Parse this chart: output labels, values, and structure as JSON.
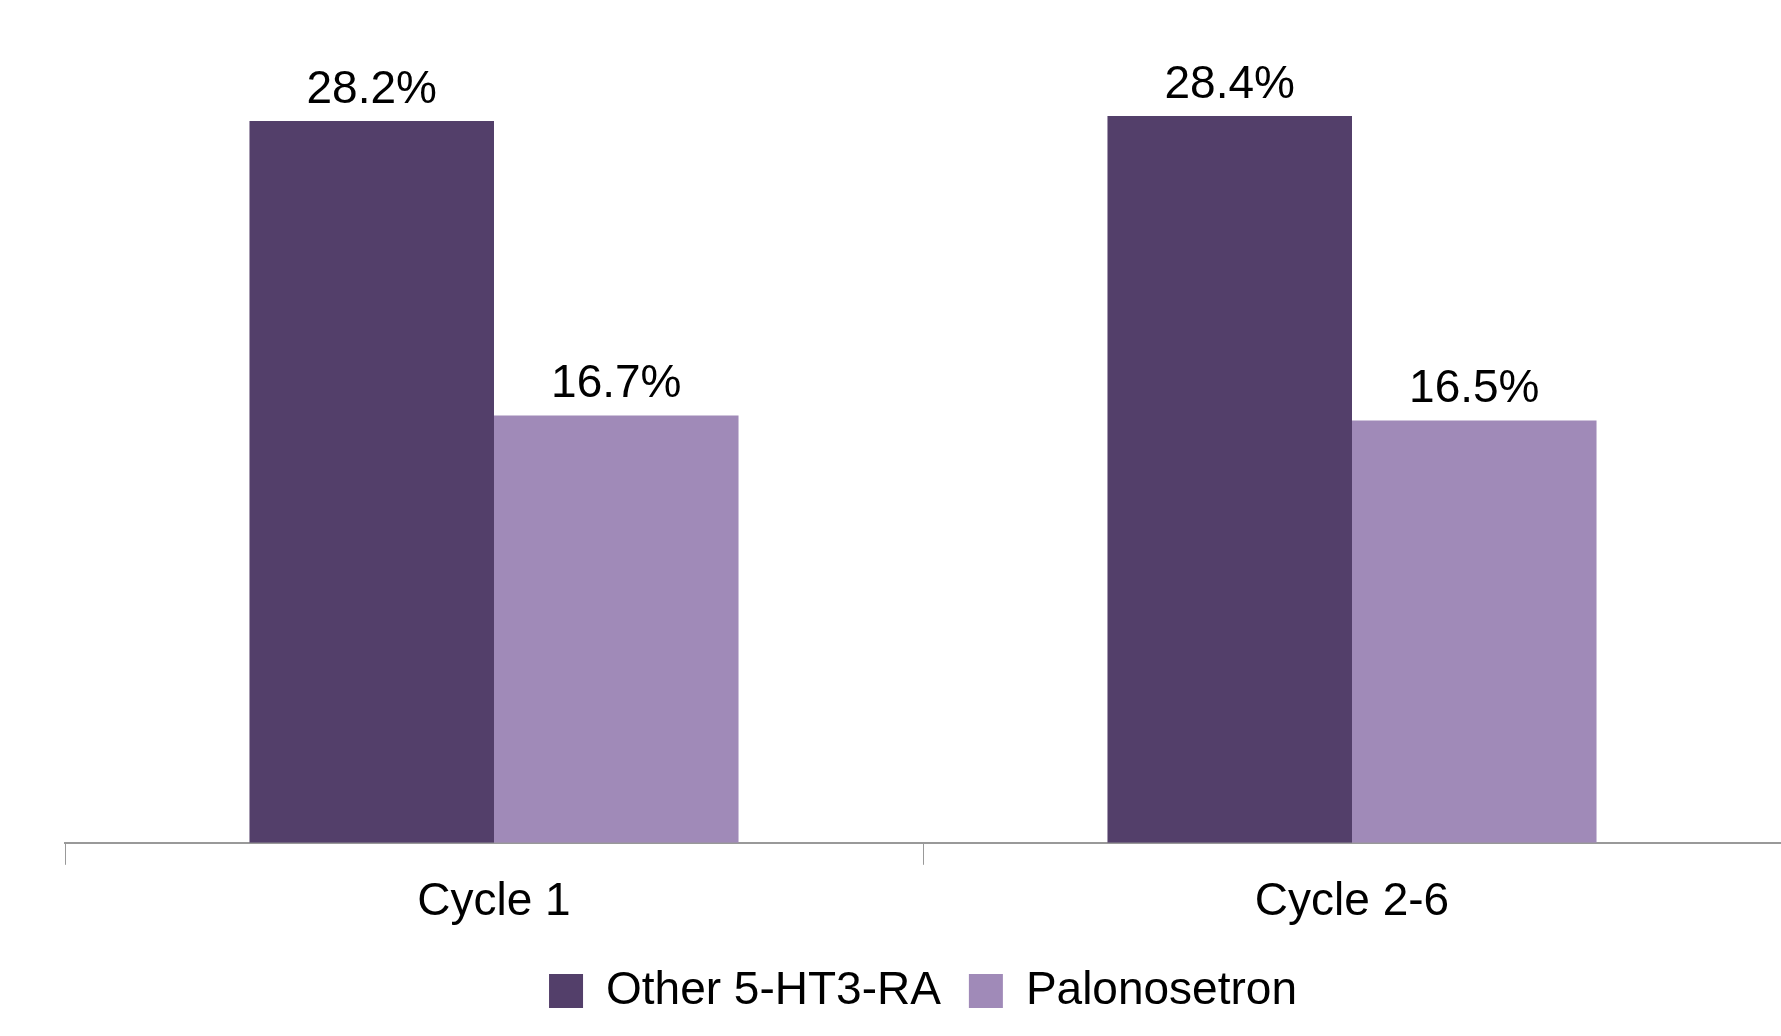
{
  "chart_data": {
    "type": "bar",
    "categories": [
      "Cycle 1",
      "Cycle 2-6"
    ],
    "series": [
      {
        "name": "Other 5-HT3-RA",
        "color": "#533f6a",
        "values": [
          28.2,
          28.4
        ],
        "value_labels": [
          "28.2%",
          "28.4%"
        ]
      },
      {
        "name": "Palonosetron",
        "color": "#a08ab8",
        "values": [
          16.7,
          16.5
        ],
        "value_labels": [
          "16.7%",
          "16.5%"
        ]
      }
    ],
    "tick_labels": "x",
    "grid": false,
    "legend": "bottom"
  }
}
